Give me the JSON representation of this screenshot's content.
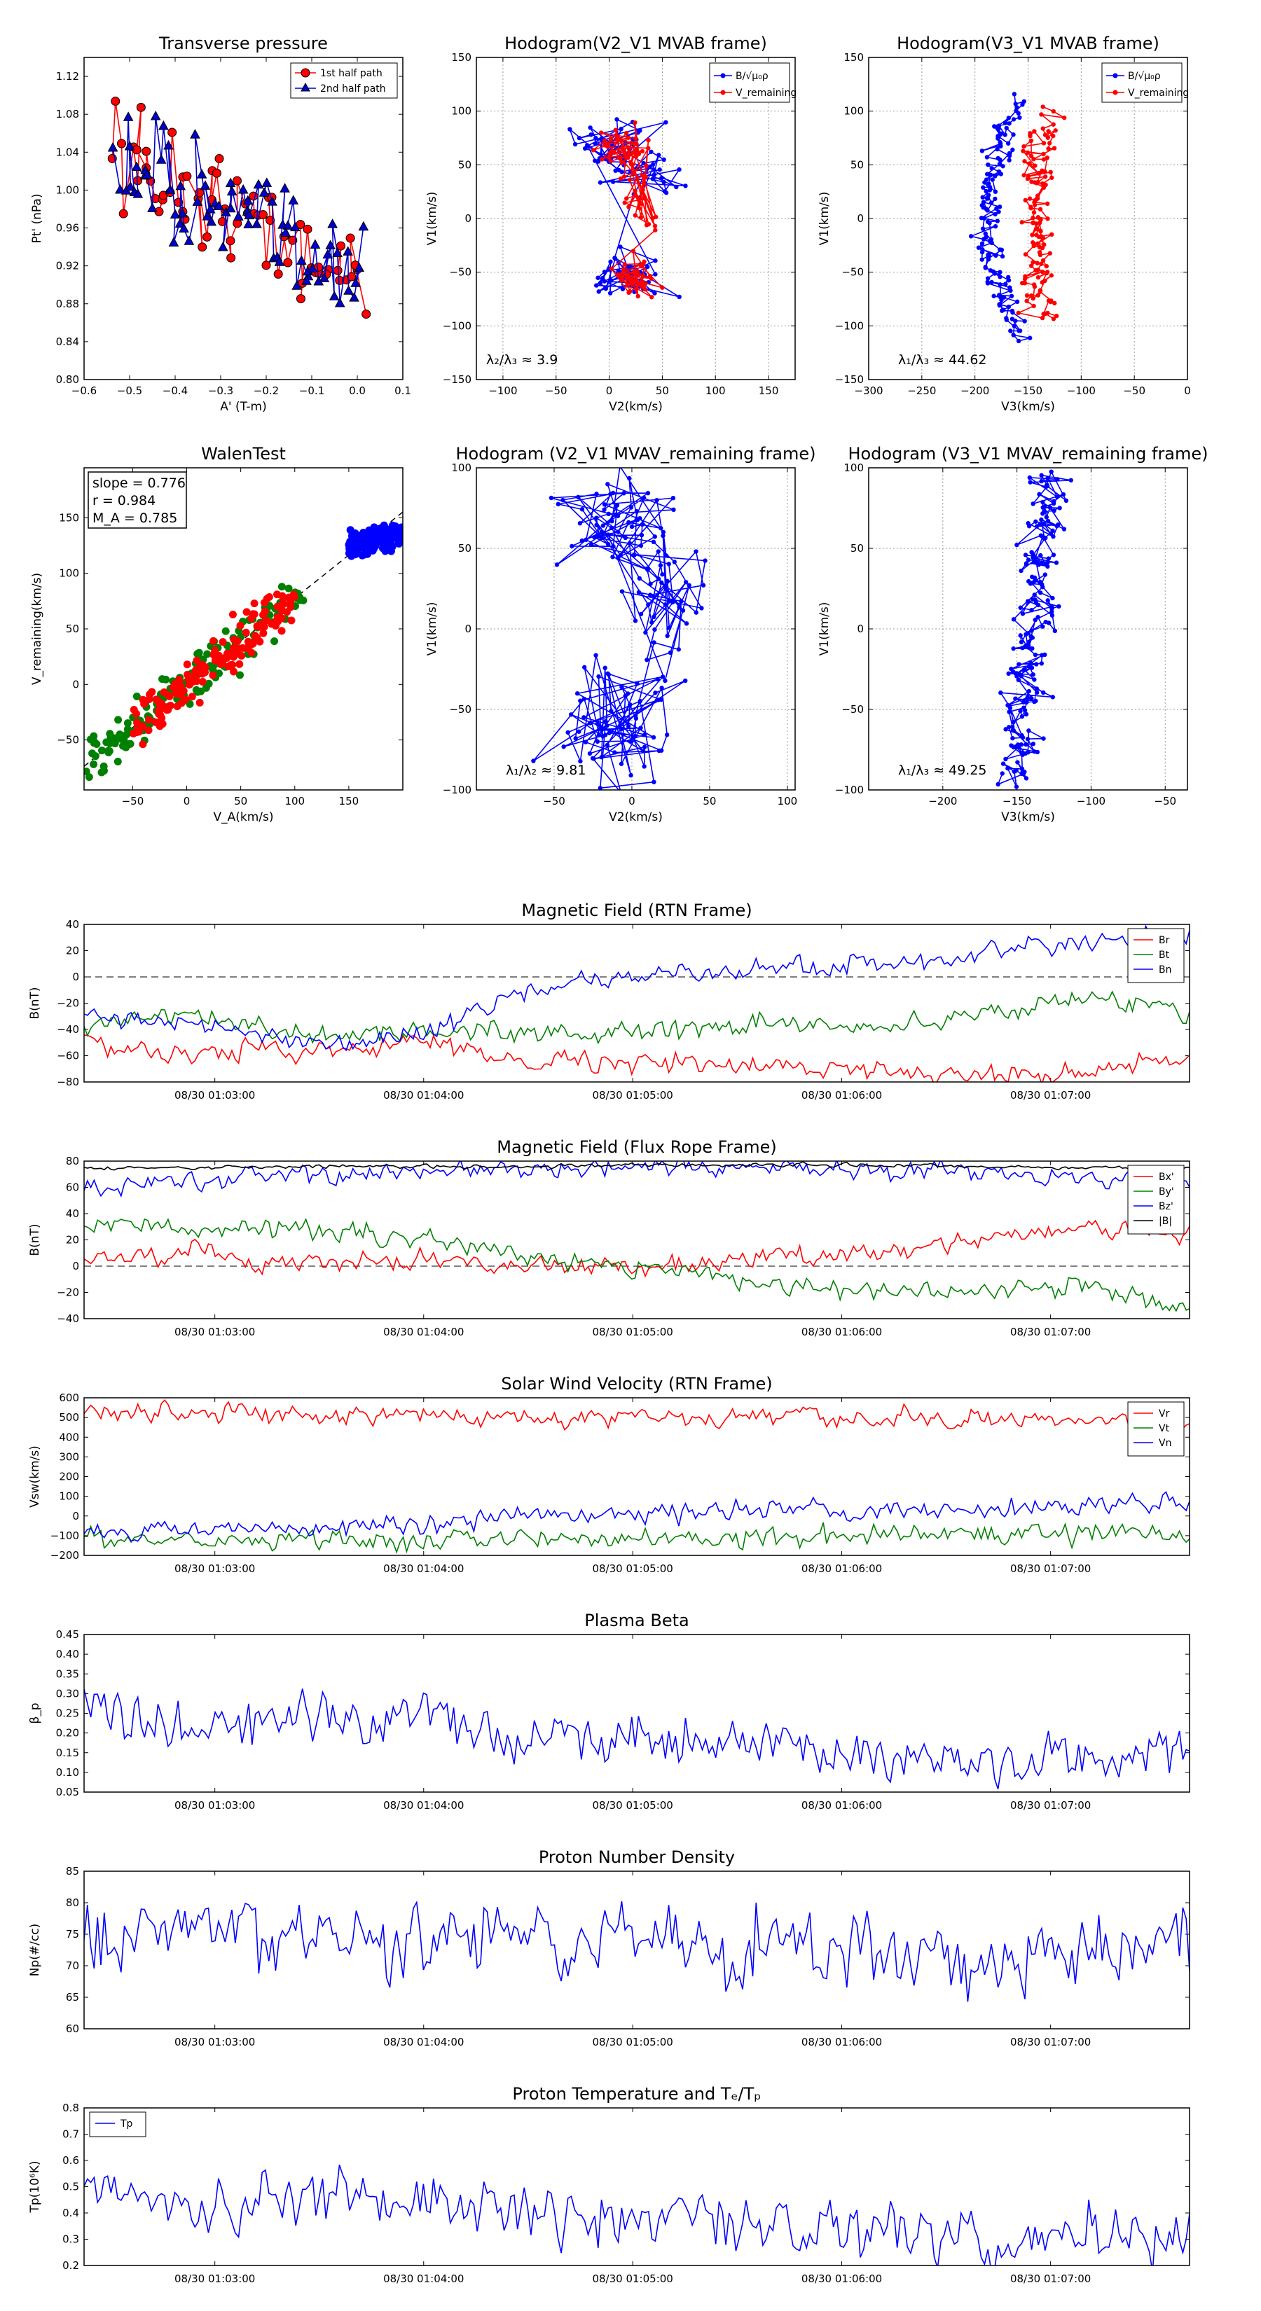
{
  "chart_data": [
    {
      "id": "tp",
      "type": "scatter",
      "title": "Transverse pressure",
      "xlabel": "A' (T-m)",
      "ylabel": "Pt' (nPa)",
      "xlim": [
        -0.6,
        0.1
      ],
      "ylim": [
        0.8,
        1.14
      ],
      "xticks": [
        "−0.6",
        "−0.5",
        "−0.4",
        "−0.3",
        "−0.2",
        "−0.1",
        "0.0",
        "0.1"
      ],
      "yticks": [
        "0.80",
        "0.84",
        "0.88",
        "0.92",
        "0.96",
        "1.00",
        "1.04",
        "1.08",
        "1.12"
      ],
      "legend": [
        "1st half path",
        "2nd half path"
      ],
      "legend_position": "top-right",
      "colors": [
        "#ff0000",
        "#0000cc"
      ],
      "grid": false
    },
    {
      "id": "h1",
      "type": "line",
      "title": "Hodogram(V2_V1 MVAB frame)",
      "xlabel": "V2(km/s)",
      "ylabel": "V1(km/s)",
      "xlim": [
        -125,
        175
      ],
      "ylim": [
        -150,
        150
      ],
      "xticks": [
        "−100",
        "−50",
        "0",
        "50",
        "100",
        "150"
      ],
      "yticks": [
        "−150",
        "−100",
        "−50",
        "0",
        "50",
        "100",
        "150"
      ],
      "legend": [
        "B/√μ₀ρ",
        "V_remaining"
      ],
      "legend_position": "top-right",
      "annotation": "λ₂/λ₃ ≈ 3.9",
      "colors": [
        "#0000ff",
        "#ff0000"
      ],
      "grid": true
    },
    {
      "id": "h2",
      "type": "line",
      "title": "Hodogram(V3_V1 MVAB frame)",
      "xlabel": "V3(km/s)",
      "ylabel": "V1(km/s)",
      "xlim": [
        -300,
        0
      ],
      "ylim": [
        -150,
        150
      ],
      "xticks": [
        "−300",
        "−250",
        "−200",
        "−150",
        "−100",
        "−50",
        "0"
      ],
      "yticks": [
        "−150",
        "−100",
        "−50",
        "0",
        "50",
        "100",
        "150"
      ],
      "legend": [
        "B/√μ₀ρ",
        "V_remaining"
      ],
      "legend_position": "top-right",
      "annotation": "λ₁/λ₃ ≈ 44.62",
      "colors": [
        "#0000ff",
        "#ff0000"
      ],
      "grid": true
    },
    {
      "id": "walen",
      "type": "scatter",
      "title": "WalenTest",
      "xlabel": "V_A(km/s)",
      "ylabel": "V_remaining(km/s)",
      "xlim": [
        -95,
        200
      ],
      "ylim": [
        -95,
        195
      ],
      "xticks": [
        "−50",
        "0",
        "50",
        "100",
        "150"
      ],
      "yticks": [
        "−50",
        "0",
        "50",
        "100",
        "150"
      ],
      "xtick_values": [
        -50,
        0,
        50,
        100,
        150
      ],
      "ytick_values": [
        -50,
        0,
        50,
        100,
        150
      ],
      "stats": [
        "slope = 0.776",
        "r = 0.984",
        "M_A = 0.785"
      ],
      "slope": 0.776,
      "colors": [
        "#008000",
        "#ff0000",
        "#0000ff"
      ],
      "grid": false
    },
    {
      "id": "h3",
      "type": "line",
      "title": "Hodogram (V2_V1 MVAV_remaining frame)",
      "xlabel": "V2(km/s)",
      "ylabel": "V1(km/s)",
      "xlim": [
        -100,
        105
      ],
      "ylim": [
        -100,
        100
      ],
      "xticks": [
        "−50",
        "0",
        "50",
        "100"
      ],
      "yticks": [
        "−100",
        "−50",
        "0",
        "50",
        "100"
      ],
      "xtick_values": [
        -50,
        0,
        50,
        100
      ],
      "ytick_values": [
        -100,
        -50,
        0,
        50,
        100
      ],
      "annotation": "λ₁/λ₂ ≈ 9.81",
      "colors": [
        "#0000ff"
      ],
      "grid": true
    },
    {
      "id": "h4",
      "type": "line",
      "title": "Hodogram (V3_V1 MVAV_remaining frame)",
      "xlabel": "V3(km/s)",
      "ylabel": "V1(km/s)",
      "xlim": [
        -250,
        -35
      ],
      "ylim": [
        -100,
        100
      ],
      "xticks": [
        "−200",
        "−150",
        "−100",
        "−50"
      ],
      "yticks": [
        "−100",
        "−50",
        "0",
        "50",
        "100"
      ],
      "xtick_values": [
        -200,
        -150,
        -100,
        -50
      ],
      "ytick_values": [
        -100,
        -50,
        0,
        50,
        100
      ],
      "annotation": "λ₁/λ₃ ≈ 49.25",
      "colors": [
        "#0000ff"
      ],
      "grid": true
    },
    {
      "id": "brtn",
      "type": "line",
      "title": "Magnetic Field (RTN Frame)",
      "ylabel": "B(nT)",
      "ylim": [
        -80,
        40
      ],
      "yticks": [
        "−80",
        "−60",
        "−40",
        "−20",
        "0",
        "20",
        "40"
      ],
      "xticks": [
        "08/30 01:03:00",
        "08/30 01:04:00",
        "08/30 01:05:00",
        "08/30 01:06:00",
        "08/30 01:07:00"
      ],
      "series": [
        {
          "name": "Br",
          "color": "#ff0000",
          "level": [
            -52,
            -58,
            -55,
            -50,
            -62,
            -65,
            -68,
            -70,
            -74,
            -72,
            -62
          ]
        },
        {
          "name": "Bt",
          "color": "#008000",
          "level": [
            -38,
            -30,
            -45,
            -42,
            -40,
            -45,
            -35,
            -40,
            -30,
            -15,
            -25
          ]
        },
        {
          "name": "Bn",
          "color": "#0000ff",
          "level": [
            -30,
            -35,
            -50,
            -45,
            -10,
            0,
            5,
            10,
            15,
            25,
            30
          ]
        }
      ],
      "zero_line": true,
      "legend_position": "top-right"
    },
    {
      "id": "bfr",
      "type": "line",
      "title": "Magnetic Field (Flux Rope Frame)",
      "ylabel": "B(nT)",
      "ylim": [
        -40,
        80
      ],
      "yticks": [
        "−40",
        "−20",
        "0",
        "20",
        "40",
        "60",
        "80"
      ],
      "xticks": [
        "08/30 01:03:00",
        "08/30 01:04:00",
        "08/30 01:05:00",
        "08/30 01:06:00",
        "08/30 01:07:00"
      ],
      "series": [
        {
          "name": "Bx'",
          "color": "#ff0000",
          "level": [
            5,
            10,
            0,
            5,
            0,
            0,
            5,
            10,
            20,
            30,
            25
          ]
        },
        {
          "name": "By'",
          "color": "#008000",
          "level": [
            35,
            25,
            30,
            20,
            10,
            0,
            -10,
            -20,
            -20,
            -15,
            -30
          ]
        },
        {
          "name": "Bz'",
          "color": "#0000ff",
          "level": [
            60,
            65,
            70,
            72,
            73,
            74,
            74,
            74,
            73,
            68,
            62
          ]
        },
        {
          "name": "|B|",
          "color": "#000000",
          "level": [
            74,
            75,
            76,
            76,
            76,
            77,
            77,
            77,
            76,
            75,
            75
          ]
        }
      ],
      "zero_line": true,
      "legend_position": "top-right"
    },
    {
      "id": "vsw",
      "type": "line",
      "title": "Solar Wind Velocity (RTN Frame)",
      "ylabel": "Vsw(km/s)",
      "ylim": [
        -200,
        600
      ],
      "yticks": [
        "−200",
        "−100",
        "0",
        "100",
        "200",
        "300",
        "400",
        "500",
        "600"
      ],
      "xticks": [
        "08/30 01:03:00",
        "08/30 01:04:00",
        "08/30 01:05:00",
        "08/30 01:06:00",
        "08/30 01:07:00"
      ],
      "series": [
        {
          "name": "Vr",
          "color": "#ff0000",
          "level": [
            530,
            520,
            520,
            510,
            505,
            500,
            495,
            490,
            485,
            485,
            480
          ]
        },
        {
          "name": "Vt",
          "color": "#008000",
          "level": [
            -110,
            -110,
            -115,
            -120,
            -115,
            -110,
            -105,
            -100,
            -90,
            -80,
            -90
          ]
        },
        {
          "name": "Vn",
          "color": "#0000ff",
          "level": [
            -80,
            -70,
            -60,
            -50,
            0,
            10,
            20,
            30,
            40,
            55,
            70
          ]
        }
      ],
      "legend_position": "top-right"
    },
    {
      "id": "beta",
      "type": "line",
      "title": "Plasma Beta",
      "ylabel": "β_p",
      "ylim": [
        0.05,
        0.45
      ],
      "yticks": [
        "0.05",
        "0.10",
        "0.15",
        "0.20",
        "0.25",
        "0.30",
        "0.35",
        "0.40",
        "0.45"
      ],
      "xticks": [
        "08/30 01:03:00",
        "08/30 01:04:00",
        "08/30 01:05:00",
        "08/30 01:06:00",
        "08/30 01:07:00"
      ],
      "series": [
        {
          "name": "",
          "color": "#0000ff",
          "level": [
            0.26,
            0.22,
            0.24,
            0.26,
            0.18,
            0.2,
            0.17,
            0.15,
            0.13,
            0.13,
            0.14
          ]
        }
      ]
    },
    {
      "id": "np",
      "type": "line",
      "title": "Proton Number Density",
      "ylabel": "Np(#/cc)",
      "ylim": [
        60,
        85
      ],
      "yticks": [
        "60",
        "65",
        "70",
        "75",
        "80",
        "85"
      ],
      "xticks": [
        "08/30 01:03:00",
        "08/30 01:04:00",
        "08/30 01:05:00",
        "08/30 01:06:00",
        "08/30 01:07:00"
      ],
      "series": [
        {
          "name": "",
          "color": "#0000ff",
          "level": [
            74,
            74,
            75,
            74,
            74,
            74,
            73,
            73,
            72,
            72,
            73
          ]
        }
      ]
    },
    {
      "id": "tpt",
      "type": "line",
      "title": "Proton Temperature and Tₑ/Tₚ",
      "ylabel": "Tp(10⁶K)",
      "ylim": [
        0.2,
        0.8
      ],
      "yticks": [
        "0.2",
        "0.3",
        "0.4",
        "0.5",
        "0.6",
        "0.7",
        "0.8"
      ],
      "xticks": [
        "08/30 01:03:00",
        "08/30 01:04:00",
        "08/30 01:05:00",
        "08/30 01:06:00",
        "08/30 01:07:00"
      ],
      "series": [
        {
          "name": "Tp",
          "color": "#0000ff",
          "level": [
            0.48,
            0.42,
            0.45,
            0.48,
            0.38,
            0.4,
            0.36,
            0.34,
            0.3,
            0.3,
            0.32
          ]
        }
      ],
      "legend_position": "top-left"
    }
  ]
}
